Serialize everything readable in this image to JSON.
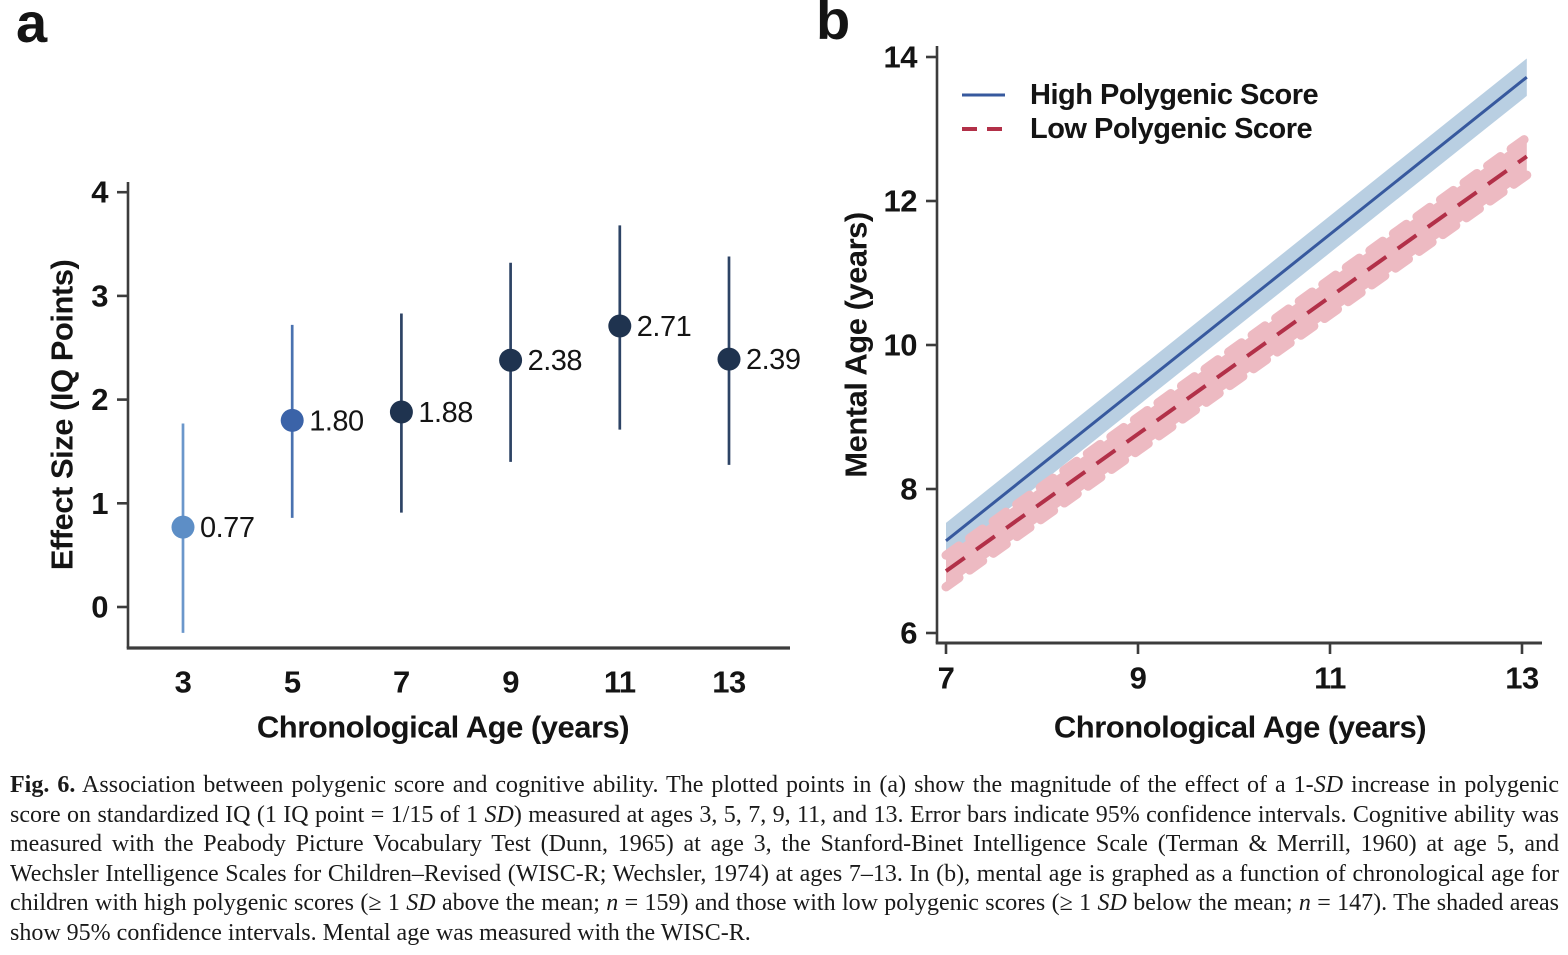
{
  "figure": {
    "colors": {
      "axis": "#3c3c3c",
      "text": "#141414"
    },
    "caption_segments": [
      {
        "text": "Fig. 6.",
        "bold": true
      },
      {
        "text": " Association between polygenic score and cognitive ability. The plotted points in (a) show the magnitude of the effect of a 1-"
      },
      {
        "text": "SD",
        "italic": true
      },
      {
        "text": " increase in polygenic score on standardized IQ (1 IQ point = 1/15 of 1 "
      },
      {
        "text": "SD",
        "italic": true
      },
      {
        "text": ") measured at ages 3, 5, 7, 9, 11, and 13. Error bars indicate 95% confidence intervals. Cognitive ability was measured with the Peabody Picture Vocabulary Test (Dunn, 1965) at age 3, the Stanford-Binet Intelligence Scale (Terman & Merrill, 1960) at age 5, and Wechsler Intelligence Scales for Children–Revised (WISC-R; Wechsler, 1974) at ages 7–13. In (b), mental age is graphed as a function of chronological age for children with high polygenic scores (≥ 1 "
      },
      {
        "text": "SD",
        "italic": true
      },
      {
        "text": " above the mean; "
      },
      {
        "text": "n",
        "italic": true
      },
      {
        "text": " = 159) and those with low polygenic scores (≥ 1 "
      },
      {
        "text": "SD",
        "italic": true
      },
      {
        "text": " below the mean; "
      },
      {
        "text": "n",
        "italic": true
      },
      {
        "text": " = 147). The shaded areas show 95% confidence intervals. Mental age was measured with the WISC-R."
      }
    ]
  },
  "chart_data": [
    {
      "id": "panel_a",
      "panel_label": "a",
      "type": "scatter",
      "xlabel": "Chronological Age (years)",
      "ylabel": "Effect Size (IQ Points)",
      "x_ticks": [
        3,
        5,
        7,
        9,
        11,
        13
      ],
      "y_ticks": [
        0,
        1,
        2,
        3,
        4
      ],
      "xlim": [
        2.2,
        14.2
      ],
      "ylim": [
        -0.45,
        4.45
      ],
      "grid": false,
      "points": [
        {
          "x": 3,
          "value": 0.77,
          "label": "0.77",
          "ci_low": -0.25,
          "ci_high": 1.77,
          "dot_color": "#5d8ec6",
          "bar_color": "#6b97cb"
        },
        {
          "x": 5,
          "value": 1.8,
          "label": "1.80",
          "ci_low": 0.86,
          "ci_high": 2.72,
          "dot_color": "#3b63a8",
          "bar_color": "#4a72b0"
        },
        {
          "x": 7,
          "value": 1.88,
          "label": "1.88",
          "ci_low": 0.91,
          "ci_high": 2.83,
          "dot_color": "#1f334f",
          "bar_color": "#2d4365"
        },
        {
          "x": 9,
          "value": 2.38,
          "label": "2.38",
          "ci_low": 1.4,
          "ci_high": 3.32,
          "dot_color": "#1f334f",
          "bar_color": "#2d4365"
        },
        {
          "x": 11,
          "value": 2.71,
          "label": "2.71",
          "ci_low": 1.71,
          "ci_high": 3.68,
          "dot_color": "#1f334f",
          "bar_color": "#2d4365"
        },
        {
          "x": 13,
          "value": 2.39,
          "label": "2.39",
          "ci_low": 1.37,
          "ci_high": 3.38,
          "dot_color": "#1f334f",
          "bar_color": "#2d4365"
        }
      ]
    },
    {
      "id": "panel_b",
      "panel_label": "b",
      "type": "line",
      "xlabel": "Chronological Age (years)",
      "ylabel": "Mental Age (years)",
      "x_ticks": [
        7,
        9,
        11,
        13
      ],
      "y_ticks": [
        6,
        8,
        10,
        12,
        14
      ],
      "xlim": [
        7,
        13.2
      ],
      "ylim": [
        5.85,
        14.1
      ],
      "grid": false,
      "legend_position": "top-left",
      "series": [
        {
          "name": "High Polygenic Score",
          "style": "solid",
          "color": "#37599e",
          "band_color": "#b9cfe2",
          "x": [
            7,
            13.05
          ],
          "y": [
            7.28,
            13.72
          ],
          "band_halfwidth": [
            0.25,
            0.26
          ]
        },
        {
          "name": "Low Polygenic Score",
          "style": "dashed",
          "color": "#b23048",
          "band_color": "#edbac2",
          "x": [
            7,
            13.05
          ],
          "y": [
            6.86,
            12.62
          ],
          "band_halfwidth": [
            0.22,
            0.26
          ]
        }
      ]
    }
  ]
}
